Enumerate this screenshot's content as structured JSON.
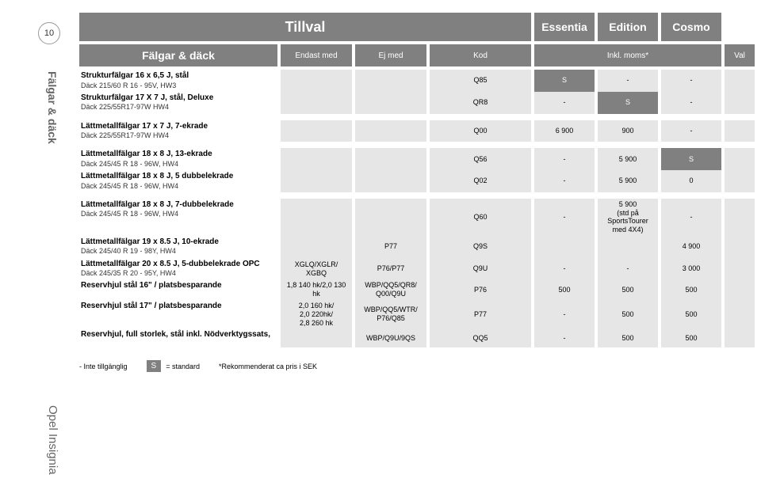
{
  "page_number": "10",
  "sidebar_section": "Fälgar & däck",
  "sidebar_model": "Opel Insignia",
  "header": {
    "tillval": "Tillval",
    "trims": [
      "Essentia",
      "Edition",
      "Cosmo"
    ],
    "section": "Fälgar & däck",
    "cols": {
      "endast": "Endast med",
      "ejmed": "Ej med",
      "kod": "Kod",
      "inkl": "Inkl. moms*",
      "val": "Val"
    }
  },
  "rows": [
    {
      "title": "Strukturfälgar 16 x 6,5 J, stål",
      "sub": "Däck 215/60 R 16 - 95V, HW3",
      "endast": "",
      "ejmed": "",
      "kod": "Q85",
      "essentia": "S",
      "edition": "-",
      "cosmo": "-",
      "val": "",
      "essentia_mode": "dark",
      "grey": true
    },
    {
      "title": "Strukturfälgar 17 X 7 J, stål, Deluxe",
      "sub": "Däck 225/55R17-97W HW4",
      "endast": "",
      "ejmed": "",
      "kod": "QR8",
      "essentia": "-",
      "edition": "S",
      "cosmo": "-",
      "val": "",
      "edition_mode": "dark",
      "grey": true
    },
    {
      "title": "Lättmetallfälgar 17 x 7 J, 7-ekrade",
      "sub": "Däck 225/55R17-97W HW4",
      "endast": "",
      "ejmed": "",
      "kod": "Q00",
      "essentia": "6 900",
      "edition": "900",
      "cosmo": "-",
      "val": "",
      "grey": true,
      "gap": true
    },
    {
      "title": "Lättmetallfälgar 18 x 8 J, 13-ekrade",
      "sub": "Däck 245/45 R 18 - 96W, HW4",
      "endast": "",
      "ejmed": "",
      "kod": "Q56",
      "essentia": "-",
      "edition": "5 900",
      "cosmo": "S",
      "val": "",
      "cosmo_mode": "dark",
      "grey": true,
      "gap": true
    },
    {
      "title": "Lättmetallfälgar 18 x 8 J, 5 dubbelekrade",
      "sub": "Däck 245/45 R 18 - 96W, HW4",
      "endast": "",
      "ejmed": "",
      "kod": "Q02",
      "essentia": "-",
      "edition": "5 900",
      "cosmo": "0",
      "val": "",
      "grey": true
    },
    {
      "title": "Lättmetallfälgar 18 x 8 J, 7-dubbelekrade",
      "sub": "Däck 245/45 R 18 - 96W, HW4",
      "endast": "",
      "ejmed": "",
      "kod": "Q60",
      "essentia": "-",
      "edition": "5 900\n(std på\nSportsTourer\nmed 4X4)",
      "cosmo": "-",
      "val": "",
      "grey": true,
      "tall": true,
      "gap": true
    },
    {
      "title": "Lättmetallfälgar 19 x 8.5 J, 10-ekrade",
      "sub": "Däck 245/40 R 19 - 98Y, HW4",
      "endast": "",
      "ejmed": "P77",
      "kod": "Q9S",
      "essentia": "",
      "edition": "",
      "cosmo": "4 900",
      "val": "",
      "grey": true
    },
    {
      "title": "Lättmetallfälgar 20 x 8.5 J, 5-dubbelekrade OPC",
      "sub": "Däck 245/35 R 20 - 95Y, HW4",
      "endast": "XGLQ/XGLR/\nXGBQ",
      "ejmed": "P76/P77",
      "kod": "Q9U",
      "essentia": "-",
      "edition": "-",
      "cosmo": "3 000",
      "val": "",
      "grey": true
    },
    {
      "title": "Reservhjul stål 16\" / platsbesparande",
      "sub": "",
      "endast": "1,8 140 hk/2,0 130\nhk",
      "ejmed": "WBP/QQ5/QR8/\nQ00/Q9U",
      "kod": "P76",
      "essentia": "500",
      "edition": "500",
      "cosmo": "500",
      "val": "",
      "grey": true
    },
    {
      "title": "Reservhjul stål 17\" / platsbesparande",
      "sub": "",
      "endast": "2,0 160 hk/\n2,0 220hk/\n2,8 260 hk",
      "ejmed": "WBP/QQ5/WTR/\nP76/Q85",
      "kod": "P77",
      "essentia": "-",
      "edition": "500",
      "cosmo": "500",
      "val": "",
      "grey": true
    },
    {
      "title": "Reservhjul, full storlek, stål inkl. Nödverktygssats,",
      "sub": "",
      "endast": "",
      "ejmed": "WBP/Q9U/9QS",
      "kod": "QQ5",
      "essentia": "-",
      "edition": "500",
      "cosmo": "500",
      "val": "",
      "grey": true
    }
  ],
  "legend": {
    "not_available": "-  Inte tillgänglig",
    "std_box": "S",
    "std_text": "= standard",
    "note": "*Rekommenderat ca pris i SEK"
  }
}
